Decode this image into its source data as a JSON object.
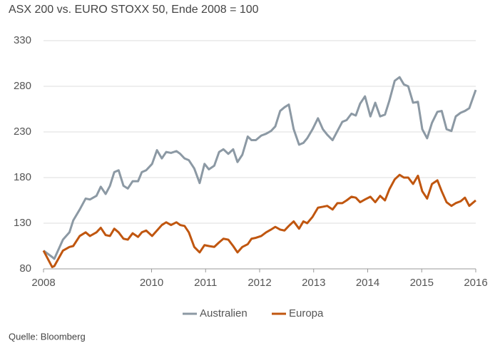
{
  "chart_data": {
    "type": "line",
    "title": "ASX 200 vs. EURO STOXX 50, Ende 2008 = 100",
    "source": "Quelle: Bloomberg",
    "x": [
      2008.0,
      2008.16,
      2008.2,
      2008.36,
      2008.48,
      2008.55,
      2008.67,
      2008.78,
      2008.86,
      2008.98,
      2009.06,
      2009.15,
      2009.23,
      2009.31,
      2009.39,
      2009.48,
      2009.56,
      2009.65,
      2009.75,
      2009.82,
      2009.9,
      2010.01,
      2010.1,
      2010.19,
      2010.27,
      2010.36,
      2010.46,
      2010.53,
      2010.61,
      2010.69,
      2010.79,
      2010.89,
      2010.98,
      2011.06,
      2011.16,
      2011.25,
      2011.33,
      2011.42,
      2011.51,
      2011.59,
      2011.68,
      2011.78,
      2011.85,
      2011.93,
      2012.03,
      2012.12,
      2012.21,
      2012.29,
      2012.38,
      2012.46,
      2012.54,
      2012.63,
      2012.73,
      2012.81,
      2012.88,
      2012.98,
      2013.08,
      2013.17,
      2013.25,
      2013.35,
      2013.44,
      2013.53,
      2013.61,
      2013.7,
      2013.78,
      2013.86,
      2013.95,
      2014.05,
      2014.14,
      2014.23,
      2014.32,
      2014.4,
      2014.5,
      2014.59,
      2014.67,
      2014.75,
      2014.84,
      2014.93,
      2015.01,
      2015.1,
      2015.19,
      2015.29,
      2015.37,
      2015.46,
      2015.55,
      2015.63,
      2015.72,
      2015.8,
      2015.88,
      2016.0
    ],
    "series": [
      {
        "name": "Australien",
        "color": "#8c99a4",
        "values": [
          100,
          93,
          91,
          112,
          120,
          133,
          145,
          157,
          156,
          160,
          170,
          162,
          171,
          186,
          188,
          171,
          168,
          176,
          176,
          186,
          188,
          195,
          210,
          201,
          208,
          207,
          209,
          206,
          201,
          199,
          190,
          174,
          195,
          189,
          193,
          208,
          211,
          206,
          211,
          197,
          205,
          225,
          221,
          221,
          226,
          228,
          231,
          236,
          253,
          257,
          260,
          233,
          216,
          218,
          223,
          233,
          245,
          233,
          227,
          221,
          231,
          241,
          243,
          250,
          248,
          261,
          269,
          247,
          262,
          247,
          249,
          264,
          286,
          290,
          282,
          280,
          262,
          263,
          233,
          223,
          240,
          252,
          253,
          233,
          231,
          247,
          251,
          253,
          256,
          276
        ]
      },
      {
        "name": "Europa",
        "color": "#c0560f",
        "values": [
          100,
          82,
          83,
          100,
          104,
          105,
          116,
          120,
          116,
          120,
          125,
          117,
          116,
          124,
          120,
          113,
          112,
          119,
          115,
          120,
          122,
          116,
          122,
          128,
          131,
          128,
          131,
          128,
          127,
          120,
          104,
          98,
          106,
          105,
          104,
          109,
          113,
          112,
          105,
          98,
          104,
          107,
          113,
          114,
          116,
          120,
          123,
          126,
          123,
          122,
          127,
          132,
          124,
          132,
          130,
          137,
          147,
          148,
          149,
          145,
          152,
          152,
          155,
          159,
          158,
          153,
          156,
          159,
          153,
          160,
          155,
          167,
          178,
          183,
          180,
          180,
          173,
          182,
          165,
          157,
          173,
          177,
          165,
          153,
          149,
          152,
          154,
          158,
          149,
          155
        ]
      }
    ],
    "xlim": [
      2008,
      2016
    ],
    "xticks": [
      2008,
      2010,
      2011,
      2012,
      2013,
      2014,
      2015,
      2016
    ],
    "ylim": [
      80,
      330
    ],
    "yticks": [
      80,
      130,
      180,
      230,
      280,
      330
    ],
    "grid": true,
    "legend": "bottom"
  }
}
